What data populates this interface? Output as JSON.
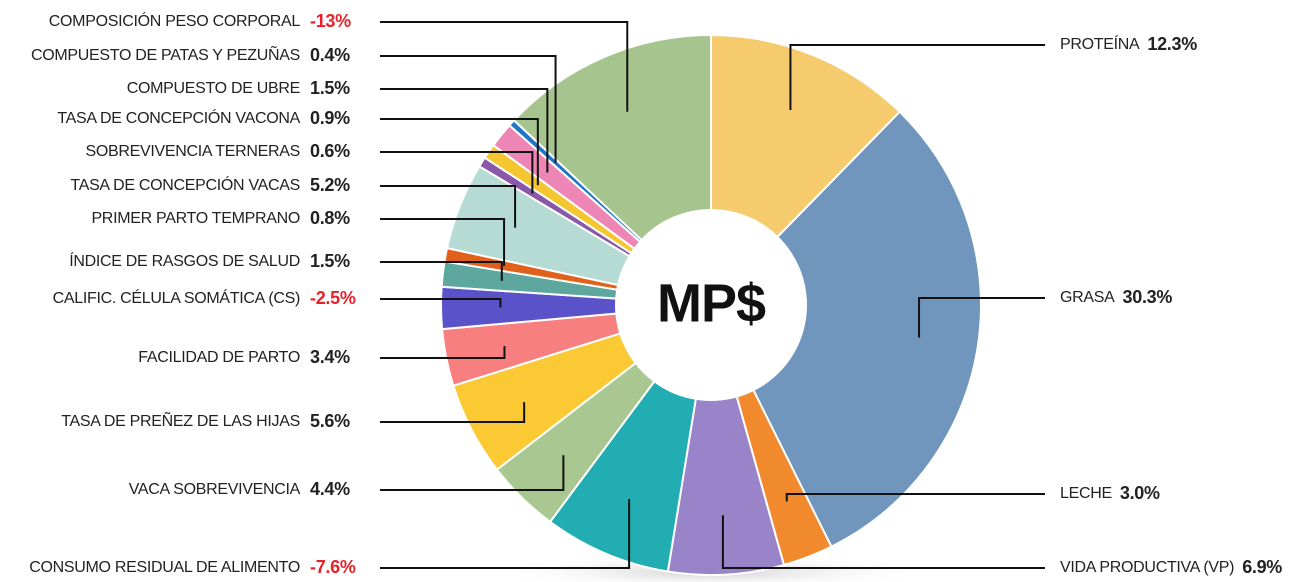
{
  "chart_data": {
    "type": "donut",
    "center_label": "MP$",
    "categories": [
      "PROTEÍNA",
      "GRASA",
      "LECHE",
      "VIDA PRODUCTIVA (VP)",
      "CONSUMO RESIDUAL DE ALIMENTO",
      "VACA SOBREVIVENCIA",
      "TASA DE PREÑEZ DE LAS HIJAS",
      "FACILIDAD DE PARTO",
      "CALIFIC. CÉLULA SOMÁTICA (CS)",
      "ÍNDICE DE RASGOS DE SALUD",
      "PRIMER PARTO TEMPRANO",
      "TASA DE CONCEPCIÓN VACAS",
      "SOBREVIVENCIA TERNERAS",
      "TASA DE CONCEPCIÓN VACONA",
      "COMPUESTO DE UBRE",
      "COMPUESTO DE PATAS Y PEZUÑAS",
      "COMPOSICIÓN PESO CORPORAL"
    ],
    "values": [
      12.3,
      30.3,
      3.0,
      6.9,
      -7.6,
      4.4,
      5.6,
      3.4,
      -2.5,
      1.5,
      0.8,
      5.2,
      0.6,
      0.9,
      1.5,
      0.4,
      -13
    ],
    "value_labels": [
      "12.3%",
      "30.3%",
      "3.0%",
      "6.9%",
      "-7.6%",
      "4.4%",
      "5.6%",
      "3.4%",
      "-2.5%",
      "1.5%",
      "0.8%",
      "5.2%",
      "0.6%",
      "0.9%",
      "1.5%",
      "0.4%",
      "-13%"
    ],
    "colors": [
      "#f5cb6e",
      "#7096bd",
      "#f08a2c",
      "#9a84c9",
      "#22adb3",
      "#a9c891",
      "#fbc934",
      "#f77f7f",
      "#5a52c8",
      "#5ea79e",
      "#e0601c",
      "#b6dbd5",
      "#8a58a8",
      "#f4c62f",
      "#ee86b5",
      "#1f76c9",
      "#a6c58e"
    ],
    "negative_color": "#e8202a"
  }
}
